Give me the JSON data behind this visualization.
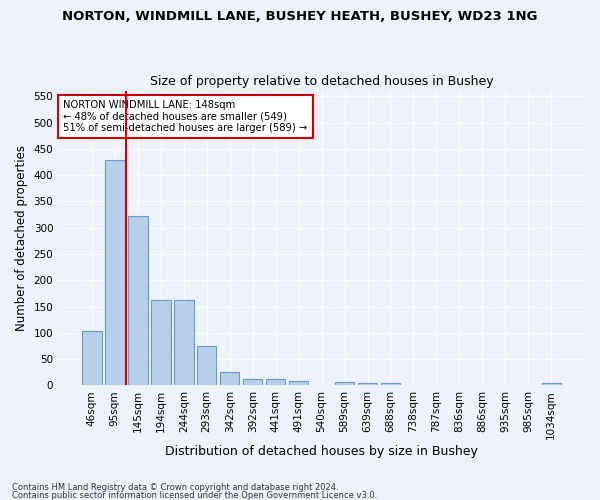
{
  "title": "NORTON, WINDMILL LANE, BUSHEY HEATH, BUSHEY, WD23 1NG",
  "subtitle": "Size of property relative to detached houses in Bushey",
  "xlabel": "Distribution of detached houses by size in Bushey",
  "ylabel": "Number of detached properties",
  "categories": [
    "46sqm",
    "95sqm",
    "145sqm",
    "194sqm",
    "244sqm",
    "293sqm",
    "342sqm",
    "392sqm",
    "441sqm",
    "491sqm",
    "540sqm",
    "589sqm",
    "639sqm",
    "688sqm",
    "738sqm",
    "787sqm",
    "836sqm",
    "886sqm",
    "935sqm",
    "985sqm",
    "1034sqm"
  ],
  "values": [
    104,
    428,
    322,
    163,
    163,
    76,
    25,
    12,
    12,
    9,
    0,
    6,
    5,
    5,
    0,
    0,
    0,
    0,
    0,
    0,
    5
  ],
  "bar_color": "#b8d0ea",
  "bar_edge_color": "#6699cc",
  "vline_x": 1.5,
  "vline_color": "#cc0000",
  "annotation_text": "NORTON WINDMILL LANE: 148sqm\n← 48% of detached houses are smaller (549)\n51% of semi-detached houses are larger (589) →",
  "annotation_box_color": "#ffffff",
  "annotation_box_edge": "#cc0000",
  "ylim": [
    0,
    560
  ],
  "yticks": [
    0,
    50,
    100,
    150,
    200,
    250,
    300,
    350,
    400,
    450,
    500,
    550
  ],
  "footer1": "Contains HM Land Registry data © Crown copyright and database right 2024.",
  "footer2": "Contains public sector information licensed under the Open Government Licence v3.0.",
  "bg_color": "#eef2fa",
  "grid_color": "#ffffff",
  "title_fontsize": 9.5,
  "subtitle_fontsize": 9,
  "tick_fontsize": 7.5,
  "ylabel_fontsize": 8.5,
  "xlabel_fontsize": 9
}
